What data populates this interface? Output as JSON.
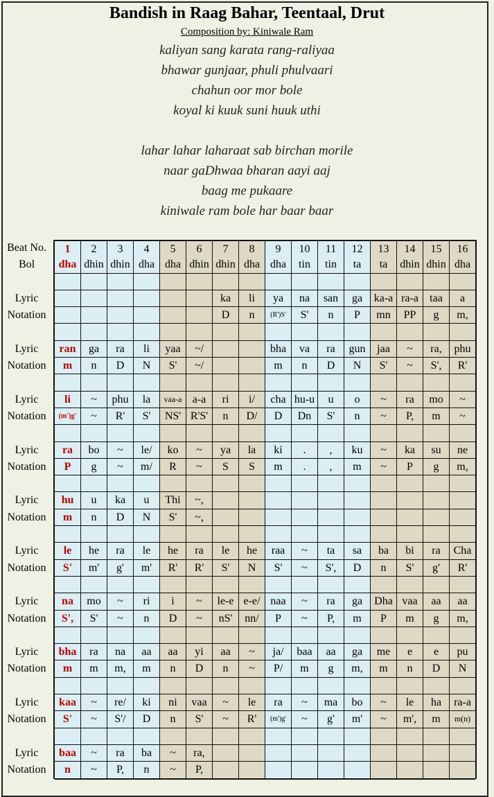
{
  "title": "Bandish in Raag Bahar, Teentaal, Drut",
  "composer": "Composition by: Kiniwale Ram",
  "verses": [
    "kaliyan sang karata rang-raliyaa",
    "bhawar gunjaar, phuli phulvaari",
    "chahun oor mor bole",
    "koyal ki kuuk suni huuk uthi",
    "lahar lahar laharaat sab birchan morile",
    "naar gaDhwaa bharan aayi aaj",
    "baag me pukaare",
    "kiniwale ram bole har baar baar"
  ],
  "colors": {
    "vibhag_a": "#dbeef4",
    "vibhag_b": "#ddd9c4",
    "sam": "#c00000"
  },
  "table": {
    "beat_label": "Beat No.",
    "bol_label": "Bol",
    "lyric_label": "Lyric",
    "notation_label": "Notation",
    "beats": [
      "1",
      "2",
      "3",
      "4",
      "5",
      "6",
      "7",
      "8",
      "9",
      "10",
      "11",
      "12",
      "13",
      "14",
      "15",
      "16"
    ],
    "bols": [
      "dha",
      "dhin",
      "dhin",
      "dha",
      "dha",
      "dhin",
      "dhin",
      "dha",
      "dha",
      "tin",
      "tin",
      "ta",
      "ta",
      "dhin",
      "dhin",
      "dha"
    ],
    "groups": [
      {
        "lyric": [
          "",
          "",
          "",
          "",
          "",
          "",
          "ka",
          "li",
          "ya",
          "na",
          "san",
          "ga",
          "ka-a",
          "ra-a",
          "taa",
          "a"
        ],
        "notation": [
          "",
          "",
          "",
          "",
          "",
          "",
          "D",
          "n",
          "(R')S'",
          "S'",
          "n",
          "P",
          "mn",
          "PP",
          "g",
          "m,"
        ]
      },
      {
        "lyric": [
          "ran",
          "ga",
          "ra",
          "li",
          "yaa",
          "~/",
          "",
          "",
          "bha",
          "va",
          "ra",
          "gun",
          "jaa",
          "~",
          "ra,",
          "phu"
        ],
        "notation": [
          "m",
          "n",
          "D",
          "N",
          "S'",
          "~/",
          "",
          "",
          "m",
          "n",
          "D",
          "N",
          "S'",
          "~",
          "S',",
          "R'"
        ]
      },
      {
        "lyric": [
          "li",
          "~",
          "phu",
          "la",
          "vaa-a",
          "a-a",
          "ri",
          "i/",
          "cha",
          "hu-u",
          "u",
          "o",
          "~",
          "ra",
          "mo",
          "~"
        ],
        "notation": [
          "(m')g'",
          "~",
          "R'",
          "S'",
          "NS'",
          "R'S'",
          "n",
          "D/",
          "D",
          "Dn",
          "S'",
          "n",
          "~",
          "P,",
          "m",
          "~"
        ]
      },
      {
        "lyric": [
          "ra",
          "bo",
          "~",
          "le/",
          "ko",
          "~",
          "ya",
          "la",
          "ki",
          ".",
          ",",
          "ku",
          "~",
          "ka",
          "su",
          "ne"
        ],
        "notation": [
          "P",
          "g",
          "~",
          "m/",
          "R",
          "~",
          "S",
          "S",
          "m",
          ".",
          ",",
          "m",
          "~",
          "P",
          "g",
          "m,"
        ]
      },
      {
        "lyric": [
          "hu",
          "u",
          "ka",
          "u",
          "Thi",
          "~,",
          "",
          "",
          "",
          "",
          "",
          "",
          "",
          "",
          "",
          ""
        ],
        "notation": [
          "m",
          "n",
          "D",
          "N",
          "S'",
          "~,",
          "",
          "",
          "",
          "",
          "",
          "",
          "",
          "",
          "",
          ""
        ]
      },
      {
        "lyric": [
          "le",
          "he",
          "ra",
          "le",
          "he",
          "ra",
          "le",
          "he",
          "raa",
          "~",
          "ta",
          "sa",
          "ba",
          "bi",
          "ra",
          "Cha"
        ],
        "notation": [
          "S'",
          "m'",
          "g'",
          "m'",
          "R'",
          "R'",
          "S'",
          "N",
          "S'",
          "~",
          "S',",
          "D",
          "n",
          "S'",
          "g'",
          "R'"
        ]
      },
      {
        "lyric": [
          "na",
          "mo",
          "~",
          "ri",
          "i",
          "~",
          "le-e",
          "e-e/",
          "naa",
          "~",
          "ra",
          "ga",
          "Dha",
          "vaa",
          "aa",
          "aa"
        ],
        "notation": [
          "S',",
          "S'",
          "~",
          "n",
          "D",
          "~",
          "nS'",
          "nn/",
          "P",
          "~",
          "P,",
          "m",
          "P",
          "m",
          "g",
          "m,"
        ]
      },
      {
        "lyric": [
          "bha",
          "ra",
          "na",
          "aa",
          "aa",
          "yi",
          "aa",
          "~",
          "ja/",
          "baa",
          "aa",
          "ga",
          "me",
          "e",
          "e",
          "pu"
        ],
        "notation": [
          "m",
          "m",
          "m,",
          "m",
          "n",
          "D",
          "n",
          "~",
          "P/",
          "m",
          "g",
          "m,",
          "m",
          "n",
          "D",
          "N"
        ]
      },
      {
        "lyric": [
          "kaa",
          "~",
          "re/",
          "ki",
          "ni",
          "vaa",
          "~",
          "le",
          "ra",
          "~",
          "ma",
          "bo",
          "~",
          "le",
          "ha",
          "ra-a"
        ],
        "notation": [
          "S'",
          "~",
          "S'/",
          "D",
          "n",
          "S'",
          "~",
          "R'",
          "(m')g'",
          "~",
          "g'",
          "m'",
          "~",
          "m',",
          "m",
          "m(n)"
        ]
      },
      {
        "lyric": [
          "baa",
          "~",
          "ra",
          "ba",
          "~",
          "ra,",
          "",
          "",
          "",
          "",
          "",
          "",
          "",
          "",
          "",
          ""
        ],
        "notation": [
          "n",
          "~",
          "P,",
          "n",
          "~",
          "P,",
          "",
          "",
          "",
          "",
          "",
          "",
          "",
          "",
          "",
          ""
        ]
      }
    ]
  }
}
